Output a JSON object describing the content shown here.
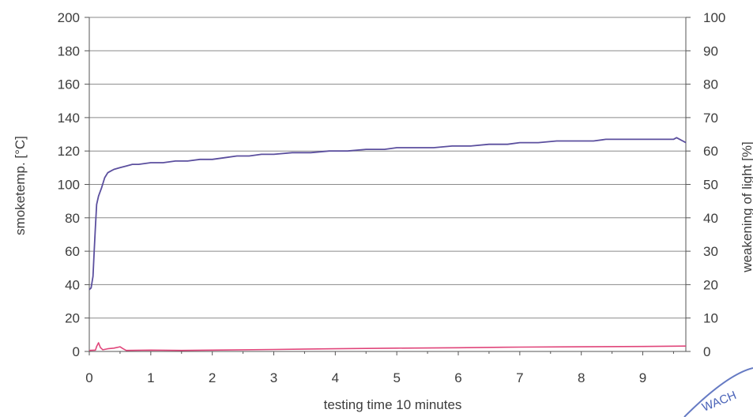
{
  "chart_data": {
    "type": "line",
    "title": "",
    "xlabel": "testing time 10 minutes",
    "ylabel_left": "smoketemp. [°C]",
    "ylabel_right": "weakening of light [%]",
    "xlim": [
      0,
      9.7
    ],
    "ylim_left": [
      0,
      200
    ],
    "ylim_right": [
      0,
      100
    ],
    "x_ticks": [
      "0",
      "1",
      "2",
      "3",
      "4",
      "5",
      "6",
      "7",
      "8",
      "9"
    ],
    "y_ticks_left": [
      "0",
      "20",
      "40",
      "60",
      "80",
      "100",
      "120",
      "140",
      "160",
      "180",
      "200"
    ],
    "y_ticks_right": [
      "0",
      "10",
      "20",
      "30",
      "40",
      "50",
      "60",
      "70",
      "80",
      "90",
      "100"
    ],
    "grid": true,
    "series": [
      {
        "axis": "left",
        "color": "#5b4f9e",
        "x": [
          0,
          0.03,
          0.06,
          0.08,
          0.1,
          0.12,
          0.15,
          0.2,
          0.25,
          0.3,
          0.35,
          0.4,
          0.5,
          0.6,
          0.7,
          0.8,
          1.0,
          1.2,
          1.4,
          1.6,
          1.8,
          2.0,
          2.2,
          2.4,
          2.6,
          2.8,
          3.0,
          3.3,
          3.6,
          3.9,
          4.2,
          4.5,
          4.8,
          5.0,
          5.3,
          5.6,
          5.9,
          6.2,
          6.5,
          6.8,
          7.0,
          7.3,
          7.6,
          7.9,
          8.2,
          8.4,
          8.6,
          8.9,
          9.2,
          9.5,
          9.55,
          9.6,
          9.65,
          9.7
        ],
        "values": [
          37,
          38,
          45,
          60,
          75,
          88,
          93,
          98,
          104,
          107,
          108,
          109,
          110,
          111,
          112,
          112,
          113,
          113,
          114,
          114,
          115,
          115,
          116,
          117,
          117,
          118,
          118,
          119,
          119,
          120,
          120,
          121,
          121,
          122,
          122,
          122,
          123,
          123,
          124,
          124,
          125,
          125,
          126,
          126,
          126,
          127,
          127,
          127,
          127,
          127,
          128,
          127,
          126,
          125
        ]
      },
      {
        "axis": "right",
        "color": "#e0457a",
        "x": [
          0,
          0.1,
          0.12,
          0.15,
          0.18,
          0.22,
          0.3,
          0.4,
          0.5,
          0.55,
          0.6,
          1.0,
          1.5,
          2.0,
          3.0,
          4.0,
          5.0,
          6.0,
          7.0,
          8.0,
          9.0,
          9.7
        ],
        "values": [
          0.3,
          0.4,
          1.5,
          2.6,
          1.2,
          0.5,
          0.8,
          1.0,
          1.4,
          0.8,
          0.3,
          0.4,
          0.3,
          0.4,
          0.6,
          0.8,
          1.0,
          1.1,
          1.3,
          1.4,
          1.5,
          1.6
        ]
      }
    ]
  },
  "colors": {
    "left_axis_title": "#3c3c3c",
    "right_axis_title": "#e0457a",
    "gridline": "#8a8a8a",
    "stamp": "#4a63b8"
  },
  "stamp": {
    "text": "WACH"
  }
}
